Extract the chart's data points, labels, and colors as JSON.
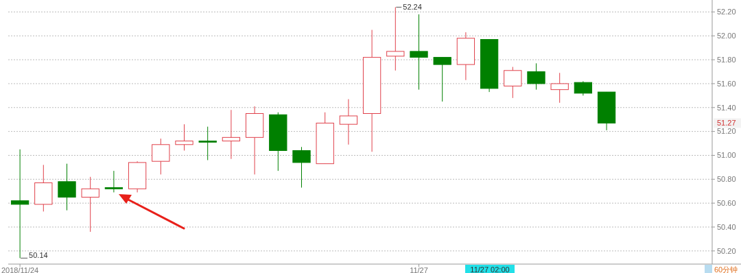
{
  "chart_data": {
    "type": "candlestick",
    "categories": [
      "2018/11/24",
      null,
      null,
      null,
      null,
      null,
      null,
      null,
      null,
      null,
      null,
      null,
      null,
      null,
      null,
      null,
      null,
      "11/27",
      null,
      null,
      null,
      null,
      null,
      null,
      null,
      null,
      null,
      null,
      null,
      null
    ],
    "ohlc": [
      [
        50.62,
        51.05,
        50.14,
        50.59
      ],
      [
        50.59,
        50.92,
        50.53,
        50.77
      ],
      [
        50.78,
        50.93,
        50.54,
        50.65
      ],
      [
        50.65,
        50.82,
        50.36,
        50.72
      ],
      [
        50.73,
        50.87,
        50.69,
        50.72
      ],
      [
        50.72,
        50.95,
        50.69,
        50.94
      ],
      [
        50.95,
        51.14,
        50.84,
        51.09
      ],
      [
        51.09,
        51.26,
        51.04,
        51.12
      ],
      [
        51.12,
        51.24,
        50.96,
        51.11
      ],
      [
        51.12,
        51.38,
        50.97,
        51.15
      ],
      [
        51.15,
        51.41,
        50.84,
        51.35
      ],
      [
        51.34,
        51.36,
        50.87,
        51.04
      ],
      [
        51.04,
        51.07,
        50.73,
        50.94
      ],
      [
        50.93,
        51.36,
        50.93,
        51.27
      ],
      [
        51.26,
        51.47,
        51.09,
        51.33
      ],
      [
        51.35,
        52.05,
        51.03,
        51.82
      ],
      [
        51.83,
        52.24,
        51.71,
        51.87
      ],
      [
        51.87,
        52.18,
        51.55,
        51.82
      ],
      [
        51.82,
        51.82,
        51.45,
        51.76
      ],
      [
        51.76,
        52.03,
        51.63,
        51.98
      ],
      [
        51.97,
        51.97,
        51.53,
        51.56
      ],
      [
        51.58,
        51.74,
        51.48,
        51.71
      ],
      [
        51.7,
        51.77,
        51.55,
        51.6
      ],
      [
        51.55,
        51.69,
        51.44,
        51.6
      ],
      [
        51.61,
        51.62,
        51.5,
        51.52
      ],
      [
        51.53,
        51.53,
        51.21,
        51.27
      ],
      null,
      null,
      null,
      null
    ],
    "colors": [
      "#008000",
      "#e0404a",
      "#008000",
      "#e0404a",
      "#008000",
      "#e0404a",
      "#e0404a",
      "#e0404a",
      "#008000",
      "#e0404a",
      "#e0404a",
      "#008000",
      "#008000",
      "#e0404a",
      "#e0404a",
      "#e0404a",
      "#e0404a",
      "#008000",
      "#008000",
      "#e0404a",
      "#008000",
      "#e0404a",
      "#008000",
      "#e0404a",
      "#008000",
      "#008000",
      null,
      null,
      null,
      null
    ],
    "ylim": [
      50.09,
      52.3
    ],
    "yticks": [
      {
        "value": 50.2,
        "label": "50.20"
      },
      {
        "value": 50.4,
        "label": "50.40"
      },
      {
        "value": 50.6,
        "label": "50.60"
      },
      {
        "value": 50.8,
        "label": "50.80"
      },
      {
        "value": 51,
        "label": "51.00"
      },
      {
        "value": 51.2,
        "label": "51.20"
      },
      {
        "value": 51.4,
        "label": "51.40"
      },
      {
        "value": 51.6,
        "label": "51.60"
      },
      {
        "value": 51.8,
        "label": "51.80"
      },
      {
        "value": 52,
        "label": "52.00"
      },
      {
        "value": 52.2,
        "label": "52.20"
      }
    ],
    "grid": "y",
    "annotations": [
      "52.24",
      "50.14",
      "51.27",
      "11/27 02:00",
      "60分钟"
    ]
  }
}
